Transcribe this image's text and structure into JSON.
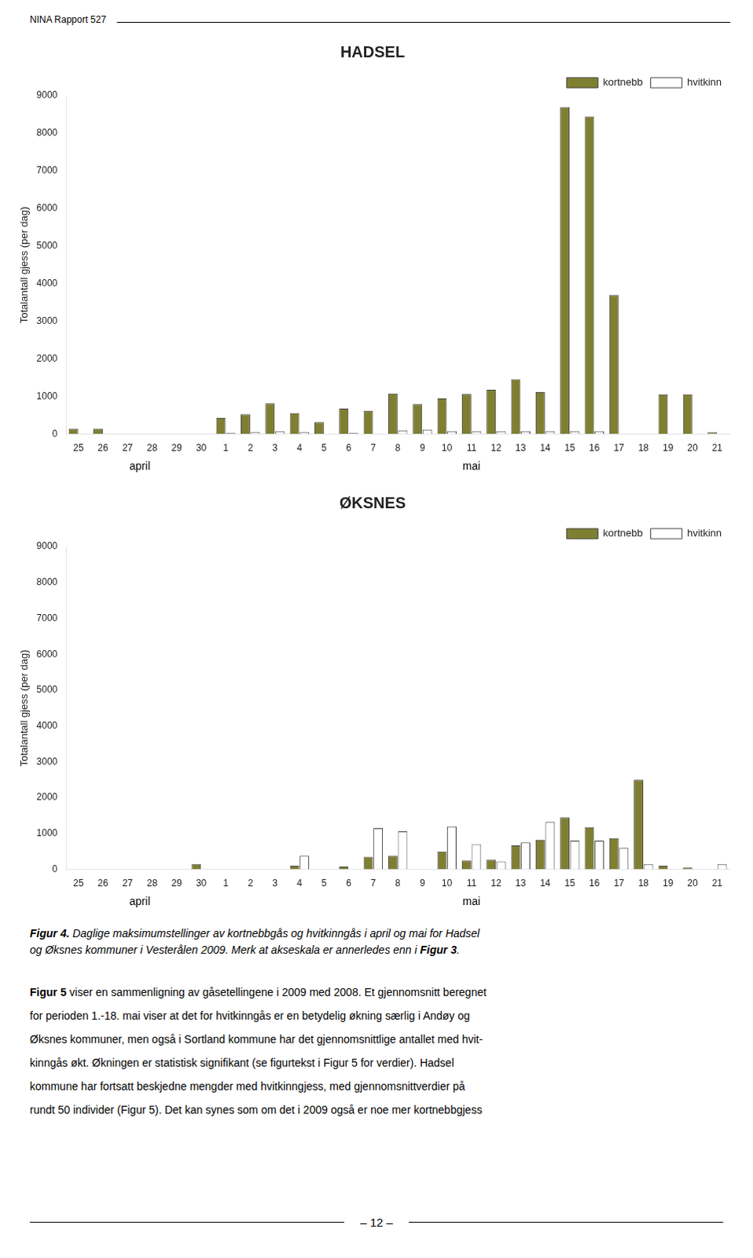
{
  "header": "NINA Rapport 527",
  "chart_data": [
    {
      "type": "bar",
      "title": "HADSEL",
      "categories": [
        "25",
        "26",
        "27",
        "28",
        "29",
        "30",
        "1",
        "2",
        "3",
        "4",
        "5",
        "6",
        "7",
        "8",
        "9",
        "10",
        "11",
        "12",
        "13",
        "14",
        "15",
        "16",
        "17",
        "18",
        "19",
        "20",
        "21"
      ],
      "series": [
        {
          "name": "kortnebb",
          "color": "#7f7f32",
          "values": [
            150,
            150,
            0,
            0,
            0,
            0,
            430,
            530,
            820,
            560,
            320,
            680,
            620,
            1080,
            800,
            950,
            1070,
            1180,
            1460,
            1120,
            8700,
            8450,
            3700,
            0,
            1060,
            1060,
            50
          ]
        },
        {
          "name": "hvitkinn",
          "color": "#ffffff",
          "values": [
            0,
            0,
            0,
            0,
            0,
            0,
            30,
            50,
            80,
            50,
            0,
            30,
            0,
            100,
            120,
            80,
            80,
            80,
            80,
            80,
            80,
            80,
            0,
            0,
            0,
            0,
            0
          ]
        }
      ],
      "ylabel": "Totalantall gjess (per dag)",
      "ylim": [
        0,
        9000
      ],
      "yticks": [
        0,
        1000,
        2000,
        3000,
        4000,
        5000,
        6000,
        7000,
        8000,
        9000
      ],
      "grid": false,
      "legend": "upper right",
      "annotations": [
        {
          "text": "april",
          "from": "25",
          "to": "30"
        },
        {
          "text": "mai",
          "from": "1",
          "to": "21"
        }
      ]
    },
    {
      "type": "bar",
      "title": "ØKSNES",
      "categories": [
        "25",
        "26",
        "27",
        "28",
        "29",
        "30",
        "1",
        "2",
        "3",
        "4",
        "5",
        "6",
        "7",
        "8",
        "9",
        "10",
        "11",
        "12",
        "13",
        "14",
        "15",
        "16",
        "17",
        "18",
        "19",
        "20",
        "21"
      ],
      "series": [
        {
          "name": "kortnebb",
          "color": "#7f7f32",
          "values": [
            0,
            0,
            0,
            0,
            0,
            150,
            0,
            0,
            0,
            100,
            0,
            80,
            350,
            380,
            0,
            500,
            250,
            270,
            670,
            830,
            1450,
            1180,
            870,
            2500,
            100,
            50,
            0
          ]
        },
        {
          "name": "hvitkinn",
          "color": "#ffffff",
          "values": [
            0,
            0,
            0,
            0,
            0,
            0,
            0,
            0,
            0,
            380,
            0,
            0,
            1150,
            1060,
            0,
            1200,
            700,
            220,
            750,
            1320,
            800,
            800,
            600,
            150,
            0,
            0,
            150
          ]
        }
      ],
      "ylabel": "Totalantall gjess (per dag)",
      "ylim": [
        0,
        9000
      ],
      "yticks": [
        0,
        1000,
        2000,
        3000,
        4000,
        5000,
        6000,
        7000,
        8000,
        9000
      ],
      "grid": false,
      "legend": "upper right",
      "annotations": [
        {
          "text": "april",
          "from": "25",
          "to": "30"
        },
        {
          "text": "mai",
          "from": "1",
          "to": "21"
        }
      ]
    }
  ],
  "caption": [
    "Figur 4. Daglige maksimumstellinger av kortnebbgås og hvitkinngås i april og mai for Hadsel",
    "og Øksnes kommuner i Vesterålen 2009. Merk at akseskala er annerledes enn i Figur 3."
  ],
  "body_text": [
    "Figur 5 viser en sammenligning av gåsetellingene i 2009 med 2008. Et gjennomsnitt beregnet",
    "for perioden 1.-18. mai viser at det for hvitkinngås er en betydelig økning særlig i Andøy og",
    "Øksnes kommuner, men også i Sortland kommune har det gjennomsnittlige antallet med hvit-",
    "kinngås økt. Økningen er statistisk signifikant (se figurtekst i Figur 5 for verdier). Hadsel",
    "kommune har fortsatt beskjedne mengder med hvitkinngjess, med gjennomsnittverdier på",
    "rundt 50 individer (Figur 5). Det kan synes som om det i 2009 også er noe mer kortnebbgjess"
  ],
  "page_number": "– 12 –"
}
